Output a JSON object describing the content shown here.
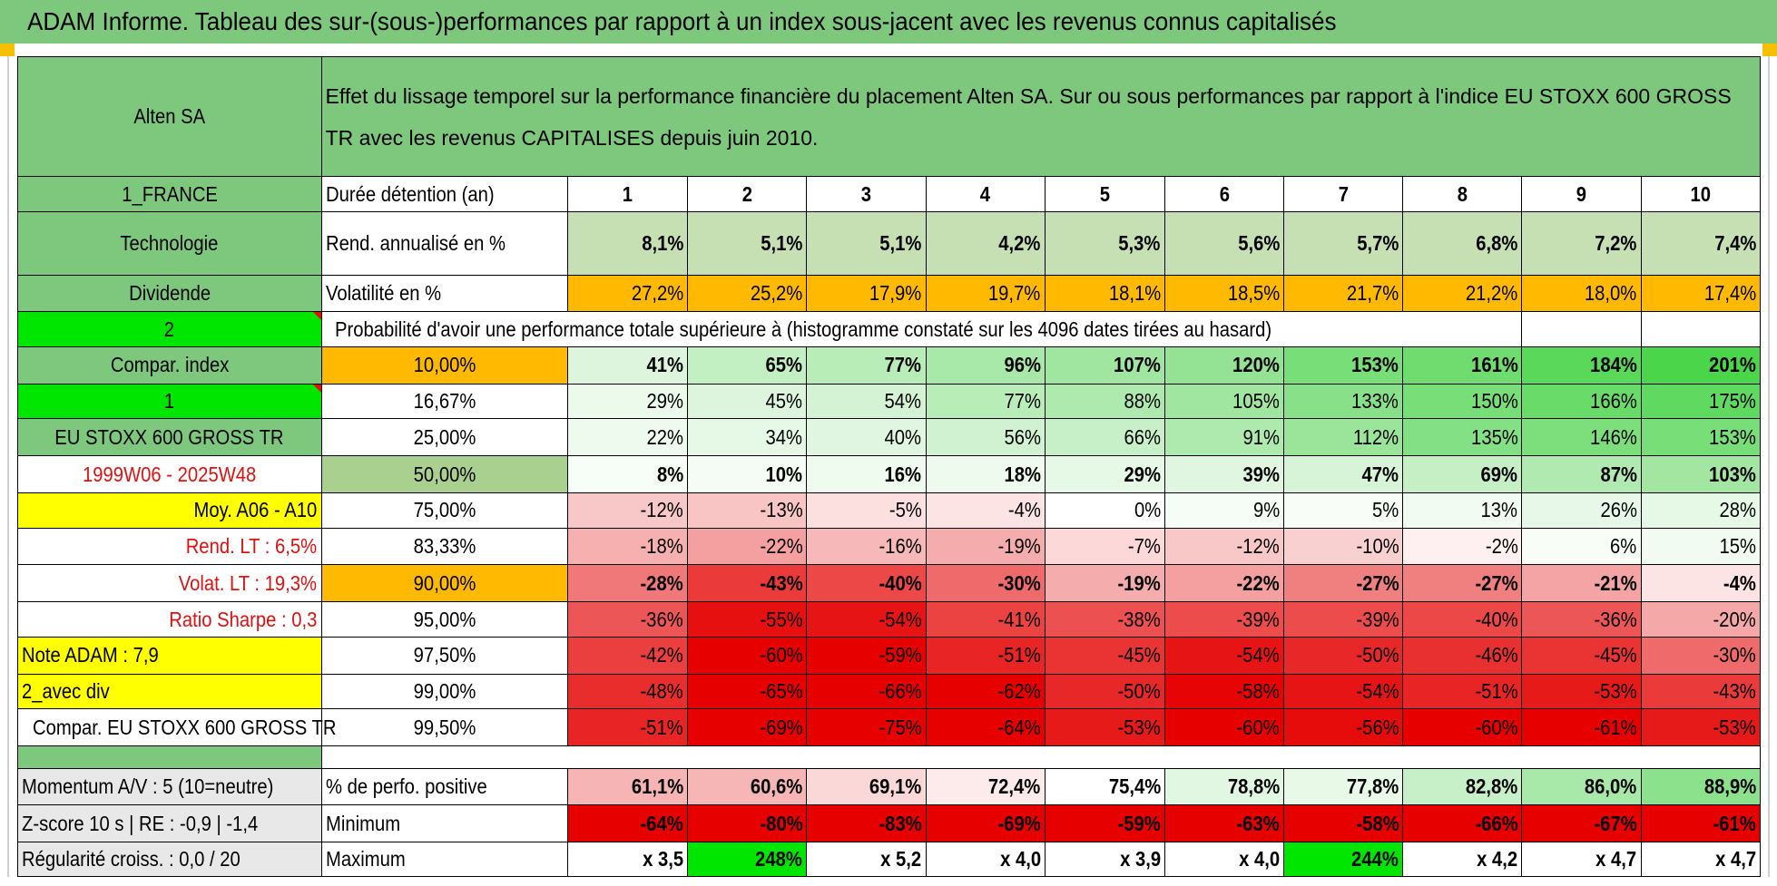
{
  "header": {
    "title": "ADAM Informe. Tableau des sur-(sous-)performances par rapport à un index sous-jacent avec les revenus connus capitalisés"
  },
  "left": {
    "company": "Alten SA",
    "country": "1_FRANCE",
    "sector": "Technologie",
    "dividend": "Dividende",
    "code": "2",
    "compar_label": "Compar. index",
    "compar_code": "1",
    "index": "EU STOXX 600 GROSS TR",
    "period": "1999W06 - 2025W48",
    "moy": "Moy. A06 - A10",
    "rend_lt": "Rend. LT :    6,5%",
    "volat_lt": "Volat. LT :    19,3%",
    "sharpe": "Ratio Sharpe :     0,3",
    "note": "Note ADAM : 7,9",
    "div": "2_avec div",
    "compar_index": "Compar. EU STOXX 600 GROSS TR",
    "momentum": "Momentum A/V : 5 (10=neutre)",
    "zscore": "Z-score 10 s | RE : -0,9 | -1,4",
    "regularite": "Régularité croiss. : 0,0 / 20"
  },
  "main": {
    "title": "Effet du lissage temporel sur la performance financière du placement Alten SA. Sur ou sous performances par rapport à l'indice EU STOXX 600 GROSS TR avec les revenus CAPITALISES depuis juin 2010.",
    "durations_label": "Durée détention (an)",
    "durations": [
      "1",
      "2",
      "3",
      "4",
      "5",
      "6",
      "7",
      "8",
      "9",
      "10"
    ],
    "rend_label": "Rend. annualisé en %",
    "rend": [
      "8,1%",
      "5,1%",
      "5,1%",
      "4,2%",
      "5,3%",
      "5,6%",
      "5,7%",
      "6,8%",
      "7,2%",
      "7,4%"
    ],
    "vol_label": "Volatilité en %",
    "vol": [
      "27,2%",
      "25,2%",
      "17,9%",
      "19,7%",
      "18,1%",
      "18,5%",
      "21,7%",
      "21,2%",
      "18,0%",
      "17,4%"
    ],
    "prob_label": "Probabilité d'avoir une performance totale supérieure à (histogramme constaté sur les 4096 dates tirées au hasard)"
  },
  "quantiles": [
    {
      "q": "10,00%",
      "v": [
        "41%",
        "65%",
        "77%",
        "96%",
        "107%",
        "120%",
        "153%",
        "161%",
        "184%",
        "201%"
      ],
      "bg": [
        "#dcf5dc",
        "#c3f0c3",
        "#b8edb8",
        "#a8e8a8",
        "#a0e6a0",
        "#94e394",
        "#78de78",
        "#70dc70",
        "#5ad85a",
        "#4ad54a"
      ]
    },
    {
      "q": "16,67%",
      "v": [
        "29%",
        "45%",
        "54%",
        "77%",
        "88%",
        "105%",
        "133%",
        "150%",
        "166%",
        "175%"
      ],
      "bg": [
        "#ebfaeb",
        "#dcf5dc",
        "#d4f3d4",
        "#b8edb8",
        "#aeeaae",
        "#a0e6a0",
        "#88e188",
        "#78de78",
        "#68db68",
        "#60d960"
      ]
    },
    {
      "q": "25,00%",
      "v": [
        "22%",
        "34%",
        "40%",
        "56%",
        "66%",
        "91%",
        "112%",
        "135%",
        "146%",
        "153%"
      ],
      "bg": [
        "#eefaee",
        "#e6f8e6",
        "#e0f6e0",
        "#d0f2d0",
        "#c8f0c8",
        "#aeeaae",
        "#9ae59a",
        "#84e084",
        "#7cdf7c",
        "#78de78"
      ]
    },
    {
      "q": "50,00%",
      "v": [
        "8%",
        "10%",
        "16%",
        "18%",
        "29%",
        "39%",
        "47%",
        "69%",
        "87%",
        "103%"
      ],
      "bg": [
        "#f7fdf7",
        "#f5fcf5",
        "#f0fbf0",
        "#eefaee",
        "#e6f8e6",
        "#e0f6e0",
        "#d8f4d8",
        "#c6efc6",
        "#b0eab0",
        "#a2e6a2"
      ]
    },
    {
      "q": "75,00%",
      "v": [
        "-12%",
        "-13%",
        "-5%",
        "-4%",
        "0%",
        "9%",
        "5%",
        "13%",
        "26%",
        "28%"
      ],
      "bg": [
        "#f8c8c8",
        "#f8c4c4",
        "#fce0e0",
        "#fde4e4",
        "#ffffff",
        "#f6fcf6",
        "#f8fdf8",
        "#f2fbf2",
        "#e8f8e8",
        "#e6f8e6"
      ]
    },
    {
      "q": "83,33%",
      "v": [
        "-18%",
        "-22%",
        "-16%",
        "-19%",
        "-7%",
        "-12%",
        "-10%",
        "-2%",
        "6%",
        "15%"
      ],
      "bg": [
        "#f6b0b0",
        "#f4a0a0",
        "#f6b8b8",
        "#f5acac",
        "#fcd8d8",
        "#f8c8c8",
        "#f9d0d0",
        "#fef0f0",
        "#f8fdf8",
        "#f1fbf1"
      ]
    },
    {
      "q": "90,00%",
      "v": [
        "-28%",
        "-43%",
        "-40%",
        "-30%",
        "-19%",
        "-22%",
        "-27%",
        "-27%",
        "-21%",
        "-4%"
      ],
      "bg": [
        "#f07878",
        "#ea3a3a",
        "#ec4848",
        "#ef6a6a",
        "#f5acac",
        "#f4a0a0",
        "#f08080",
        "#f08080",
        "#f4a4a4",
        "#fde4e4"
      ]
    },
    {
      "q": "95,00%",
      "v": [
        "-36%",
        "-55%",
        "-54%",
        "-41%",
        "-38%",
        "-39%",
        "-39%",
        "-40%",
        "-36%",
        "-20%"
      ],
      "bg": [
        "#ed5656",
        "#e61010",
        "#e61414",
        "#eb4242",
        "#ec5050",
        "#ec4c4c",
        "#ec4c4c",
        "#ec4848",
        "#ed5656",
        "#f4a8a8"
      ]
    },
    {
      "q": "97,50%",
      "v": [
        "-42%",
        "-60%",
        "-59%",
        "-51%",
        "-45%",
        "-54%",
        "-50%",
        "-46%",
        "-45%",
        "-30%"
      ],
      "bg": [
        "#eb3e3e",
        "#e60000",
        "#e60000",
        "#e82424",
        "#ea3434",
        "#e61414",
        "#e82828",
        "#e93030",
        "#ea3434",
        "#ef6a6a"
      ]
    },
    {
      "q": "99,00%",
      "v": [
        "-48%",
        "-65%",
        "-66%",
        "-62%",
        "-50%",
        "-58%",
        "-54%",
        "-51%",
        "-53%",
        "-43%"
      ],
      "bg": [
        "#e92c2c",
        "#e60000",
        "#e60000",
        "#e60000",
        "#e82828",
        "#e60404",
        "#e61414",
        "#e82424",
        "#e71a1a",
        "#ea3a3a"
      ]
    },
    {
      "q": "99,50%",
      "v": [
        "-51%",
        "-69%",
        "-75%",
        "-64%",
        "-53%",
        "-60%",
        "-56%",
        "-60%",
        "-61%",
        "-53%"
      ],
      "bg": [
        "#e82424",
        "#e60000",
        "#e60000",
        "#e60000",
        "#e71a1a",
        "#e60000",
        "#e60c0c",
        "#e60000",
        "#e60000",
        "#e71a1a"
      ]
    }
  ],
  "bottom": {
    "pos_label": "% de perfo. positive",
    "pos": [
      "61,1%",
      "60,6%",
      "69,1%",
      "72,4%",
      "75,4%",
      "78,8%",
      "77,8%",
      "82,8%",
      "86,0%",
      "88,9%"
    ],
    "pos_bg": [
      "#f6b4b4",
      "#f6b6b6",
      "#fbd8d8",
      "#fdeaea",
      "#ffffff",
      "#e2f7e2",
      "#e8f9e8",
      "#c8f0c8",
      "#a8e8a8",
      "#8ce28c"
    ],
    "min_label": "Minimum",
    "min": [
      "-64%",
      "-80%",
      "-83%",
      "-69%",
      "-59%",
      "-63%",
      "-58%",
      "-66%",
      "-67%",
      "-61%"
    ],
    "min_bg": [
      "#e60000",
      "#e60000",
      "#e60000",
      "#e60000",
      "#e60000",
      "#e60000",
      "#e60000",
      "#e60000",
      "#e60000",
      "#e60000"
    ],
    "max_label": "Maximum",
    "max": [
      "x 3,5",
      "248%",
      "x 5,2",
      "x 4,0",
      "x 3,9",
      "x 4,0",
      "244%",
      "x 4,2",
      "x 4,7",
      "x 4,7"
    ],
    "max_bg": [
      "#ffffff",
      "#00e600",
      "#ffffff",
      "#ffffff",
      "#ffffff",
      "#ffffff",
      "#00e600",
      "#ffffff",
      "#ffffff",
      "#ffffff"
    ]
  }
}
